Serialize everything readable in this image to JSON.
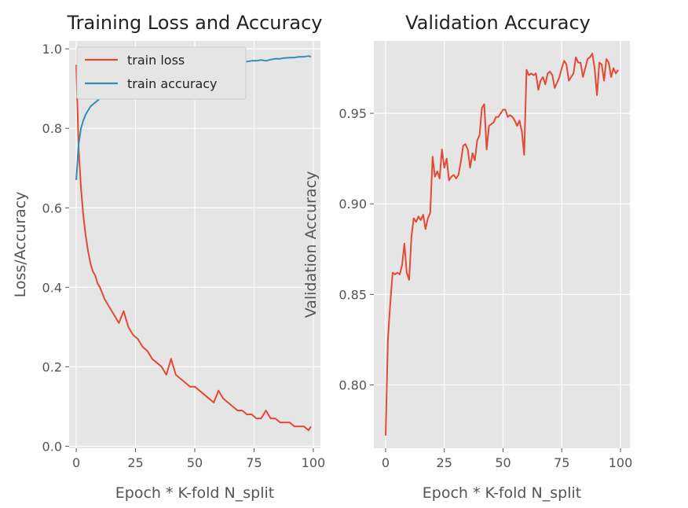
{
  "chart_data": [
    {
      "type": "line",
      "title": "Training Loss and Accuracy",
      "xlabel": "Epoch * K-fold N_split",
      "ylabel": "Loss/Accuracy",
      "xlim": [
        -3,
        103
      ],
      "ylim": [
        -0.005,
        1.02
      ],
      "xticks": [
        0,
        25,
        50,
        75,
        100
      ],
      "yticks": [
        0.0,
        0.2,
        0.4,
        0.6,
        0.8,
        1.0
      ],
      "xtick_labels": [
        "0",
        "25",
        "50",
        "75",
        "100"
      ],
      "ytick_labels": [
        "0.0",
        "0.2",
        "0.4",
        "0.6",
        "0.8",
        "1.0"
      ],
      "grid": true,
      "legend": "top-left",
      "series": [
        {
          "name": "train loss",
          "color": "#e24a33",
          "x": [
            0,
            1,
            2,
            3,
            4,
            5,
            6,
            7,
            8,
            9,
            10,
            12,
            14,
            16,
            18,
            20,
            22,
            24,
            26,
            28,
            30,
            32,
            34,
            36,
            38,
            40,
            42,
            44,
            46,
            48,
            50,
            52,
            54,
            56,
            58,
            60,
            62,
            64,
            66,
            68,
            70,
            72,
            74,
            76,
            78,
            80,
            82,
            84,
            86,
            88,
            90,
            92,
            94,
            96,
            98,
            99
          ],
          "y": [
            0.96,
            0.75,
            0.65,
            0.58,
            0.53,
            0.49,
            0.46,
            0.44,
            0.43,
            0.41,
            0.4,
            0.37,
            0.35,
            0.33,
            0.31,
            0.34,
            0.3,
            0.28,
            0.27,
            0.25,
            0.24,
            0.22,
            0.21,
            0.2,
            0.18,
            0.22,
            0.18,
            0.17,
            0.16,
            0.15,
            0.15,
            0.14,
            0.13,
            0.12,
            0.11,
            0.14,
            0.12,
            0.11,
            0.1,
            0.09,
            0.09,
            0.08,
            0.08,
            0.07,
            0.07,
            0.09,
            0.07,
            0.07,
            0.06,
            0.06,
            0.06,
            0.05,
            0.05,
            0.05,
            0.04,
            0.05
          ]
        },
        {
          "name": "train accuracy",
          "color": "#348abd",
          "x": [
            0,
            1,
            2,
            3,
            4,
            5,
            6,
            7,
            8,
            9,
            10,
            12,
            14,
            16,
            18,
            20,
            22,
            24,
            26,
            28,
            30,
            32,
            34,
            36,
            38,
            40,
            42,
            44,
            46,
            48,
            50,
            52,
            54,
            56,
            58,
            60,
            62,
            64,
            66,
            68,
            70,
            72,
            74,
            76,
            78,
            80,
            82,
            84,
            86,
            88,
            90,
            92,
            94,
            96,
            98,
            99
          ],
          "y": [
            0.67,
            0.76,
            0.8,
            0.82,
            0.835,
            0.845,
            0.855,
            0.86,
            0.865,
            0.87,
            0.875,
            0.88,
            0.89,
            0.895,
            0.9,
            0.895,
            0.905,
            0.91,
            0.915,
            0.92,
            0.925,
            0.93,
            0.93,
            0.935,
            0.94,
            0.935,
            0.94,
            0.945,
            0.945,
            0.95,
            0.95,
            0.952,
            0.955,
            0.958,
            0.96,
            0.955,
            0.96,
            0.962,
            0.965,
            0.965,
            0.967,
            0.968,
            0.97,
            0.97,
            0.972,
            0.97,
            0.973,
            0.975,
            0.975,
            0.977,
            0.978,
            0.978,
            0.98,
            0.98,
            0.982,
            0.98
          ]
        }
      ]
    },
    {
      "type": "line",
      "title": "Validation Accuracy",
      "xlabel": "Epoch * K-fold N_split",
      "ylabel": "Validation Accuracy",
      "xlim": [
        -5,
        104
      ],
      "ylim": [
        0.765,
        0.99
      ],
      "xticks": [
        0,
        25,
        50,
        75,
        100
      ],
      "yticks": [
        0.8,
        0.85,
        0.9,
        0.95
      ],
      "xtick_labels": [
        "0",
        "25",
        "50",
        "75",
        "100"
      ],
      "ytick_labels": [
        "0.80",
        "0.85",
        "0.90",
        "0.95"
      ],
      "grid": true,
      "series": [
        {
          "color": "#e24a33",
          "x": [
            0,
            1,
            2,
            3,
            4,
            5,
            6,
            7,
            8,
            9,
            10,
            11,
            12,
            13,
            14,
            15,
            16,
            17,
            18,
            19,
            20,
            21,
            22,
            23,
            24,
            25,
            26,
            27,
            28,
            29,
            30,
            31,
            32,
            33,
            34,
            35,
            36,
            37,
            38,
            39,
            40,
            41,
            42,
            43,
            44,
            45,
            46,
            47,
            48,
            49,
            50,
            51,
            52,
            53,
            54,
            55,
            56,
            57,
            58,
            59,
            60,
            61,
            62,
            63,
            64,
            65,
            66,
            67,
            68,
            69,
            70,
            71,
            72,
            73,
            74,
            75,
            76,
            77,
            78,
            79,
            80,
            81,
            82,
            83,
            84,
            85,
            86,
            87,
            88,
            89,
            90,
            91,
            92,
            93,
            94,
            95,
            96,
            97,
            98,
            99
          ],
          "y": [
            0.772,
            0.825,
            0.845,
            0.862,
            0.861,
            0.862,
            0.861,
            0.866,
            0.878,
            0.862,
            0.858,
            0.882,
            0.892,
            0.89,
            0.893,
            0.891,
            0.894,
            0.886,
            0.892,
            0.895,
            0.926,
            0.915,
            0.918,
            0.914,
            0.93,
            0.92,
            0.925,
            0.913,
            0.915,
            0.916,
            0.914,
            0.916,
            0.923,
            0.932,
            0.933,
            0.93,
            0.92,
            0.928,
            0.924,
            0.935,
            0.938,
            0.953,
            0.955,
            0.93,
            0.943,
            0.944,
            0.945,
            0.948,
            0.948,
            0.95,
            0.952,
            0.952,
            0.948,
            0.949,
            0.948,
            0.946,
            0.943,
            0.946,
            0.94,
            0.927,
            0.974,
            0.971,
            0.972,
            0.971,
            0.972,
            0.963,
            0.968,
            0.97,
            0.966,
            0.972,
            0.973,
            0.971,
            0.964,
            0.967,
            0.97,
            0.975,
            0.979,
            0.977,
            0.968,
            0.97,
            0.972,
            0.981,
            0.978,
            0.978,
            0.97,
            0.975,
            0.98,
            0.981,
            0.983,
            0.975,
            0.96,
            0.978,
            0.977,
            0.968,
            0.98,
            0.978,
            0.97,
            0.975,
            0.972,
            0.974
          ]
        }
      ]
    }
  ]
}
